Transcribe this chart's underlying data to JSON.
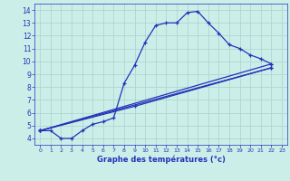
{
  "xlabel": "Graphe des températures (°c)",
  "background_color": "#cceee8",
  "grid_color": "#aad8d0",
  "line_color": "#2233bb",
  "xlim": [
    -0.5,
    23.5
  ],
  "ylim": [
    3.5,
    14.5
  ],
  "xticks": [
    0,
    1,
    2,
    3,
    4,
    5,
    6,
    7,
    8,
    9,
    10,
    11,
    12,
    13,
    14,
    15,
    16,
    17,
    18,
    19,
    20,
    21,
    22,
    23
  ],
  "yticks": [
    4,
    5,
    6,
    7,
    8,
    9,
    10,
    11,
    12,
    13,
    14
  ],
  "series1_x": [
    0,
    1,
    2,
    3,
    4,
    5,
    6,
    7,
    8,
    9,
    10,
    11,
    12,
    13,
    14,
    15,
    16,
    17,
    18,
    19,
    20,
    21,
    22
  ],
  "series1_y": [
    4.6,
    4.6,
    4.0,
    4.0,
    4.6,
    5.1,
    5.3,
    5.6,
    8.3,
    9.7,
    11.5,
    12.8,
    13.0,
    13.0,
    13.8,
    13.9,
    13.0,
    12.2,
    11.3,
    11.0,
    10.5,
    10.2,
    9.8
  ],
  "series2_x": [
    0,
    22
  ],
  "series2_y": [
    4.6,
    9.8
  ],
  "series3_x": [
    0,
    22
  ],
  "series3_y": [
    4.6,
    9.5
  ],
  "series4_x": [
    0,
    9,
    22
  ],
  "series4_y": [
    4.6,
    6.5,
    9.5
  ]
}
